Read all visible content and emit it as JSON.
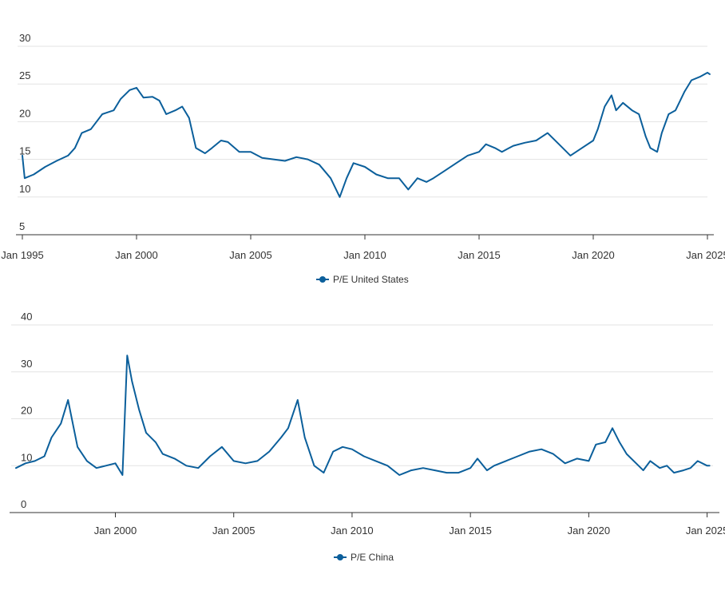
{
  "colors": {
    "series": "#0b5f9b",
    "grid": "#e3e3e3",
    "axis": "#333333",
    "text": "#333333"
  },
  "chart_data": [
    {
      "type": "line",
      "title": "",
      "xlabel": "",
      "ylabel": "",
      "ylim": [
        5,
        30
      ],
      "yticks": [
        "5",
        "10",
        "15",
        "20",
        "25",
        "30"
      ],
      "xticks": [
        "Jan 1995",
        "Jan 2000",
        "Jan 2005",
        "Jan 2010",
        "Jan 2015",
        "Jan 2020",
        "Jan 2025"
      ],
      "grid": true,
      "legend": "bottom-center",
      "series": [
        {
          "name": "P/E United States",
          "x": [
            1995.0,
            1995.1,
            1995.5,
            1996.0,
            1996.5,
            1997.0,
            1997.3,
            1997.6,
            1998.0,
            1998.5,
            1998.7,
            1999.0,
            1999.3,
            1999.7,
            2000.0,
            2000.3,
            2000.7,
            2001.0,
            2001.3,
            2001.7,
            2002.0,
            2002.3,
            2002.6,
            2003.0,
            2003.3,
            2003.7,
            2004.0,
            2004.5,
            2005.0,
            2005.5,
            2006.0,
            2006.5,
            2007.0,
            2007.5,
            2008.0,
            2008.5,
            2008.9,
            2009.2,
            2009.5,
            2010.0,
            2010.5,
            2011.0,
            2011.5,
            2011.9,
            2012.3,
            2012.7,
            2013.0,
            2013.5,
            2014.0,
            2014.5,
            2015.0,
            2015.3,
            2015.7,
            2016.0,
            2016.5,
            2017.0,
            2017.5,
            2018.0,
            2018.5,
            2019.0,
            2019.5,
            2020.0,
            2020.2,
            2020.5,
            2020.8,
            2021.0,
            2021.3,
            2021.7,
            2022.0,
            2022.3,
            2022.5,
            2022.8,
            2023.0,
            2023.3,
            2023.6,
            2024.0,
            2024.3,
            2024.7,
            2025.0,
            2025.1
          ],
          "values": [
            15.5,
            12.5,
            13.0,
            14.0,
            14.8,
            15.5,
            16.5,
            18.5,
            19.0,
            21.0,
            21.2,
            21.5,
            23.0,
            24.2,
            24.5,
            23.2,
            23.3,
            22.8,
            21.0,
            21.5,
            22.0,
            20.5,
            16.5,
            15.8,
            16.5,
            17.5,
            17.3,
            16.0,
            16.0,
            15.2,
            15.0,
            14.8,
            15.3,
            15.0,
            14.3,
            12.5,
            10.0,
            12.5,
            14.5,
            14.0,
            13.0,
            12.5,
            12.5,
            11.0,
            12.5,
            12.0,
            12.5,
            13.5,
            14.5,
            15.5,
            16.0,
            17.0,
            16.5,
            16.0,
            16.8,
            17.2,
            17.5,
            18.5,
            17.0,
            15.5,
            16.5,
            17.5,
            19.0,
            22.0,
            23.5,
            21.5,
            22.5,
            21.5,
            21.0,
            18.0,
            16.5,
            16.0,
            18.5,
            21.0,
            21.5,
            24.0,
            25.5,
            26.0,
            26.5,
            26.3
          ]
        }
      ]
    },
    {
      "type": "line",
      "title": "",
      "xlabel": "",
      "ylabel": "",
      "ylim": [
        0,
        40
      ],
      "yticks": [
        "0",
        "10",
        "20",
        "30",
        "40"
      ],
      "xticks": [
        "Jan 2000",
        "Jan 2005",
        "Jan 2010",
        "Jan 2015",
        "Jan 2020",
        "Jan 2025"
      ],
      "grid": true,
      "legend": "bottom-center",
      "series": [
        {
          "name": "P/E China",
          "x": [
            1995.8,
            1996.2,
            1996.6,
            1997.0,
            1997.3,
            1997.7,
            1998.0,
            1998.4,
            1998.8,
            1999.2,
            1999.6,
            2000.0,
            2000.3,
            2000.5,
            2000.7,
            2001.0,
            2001.3,
            2001.7,
            2002.0,
            2002.5,
            2003.0,
            2003.5,
            2004.0,
            2004.5,
            2005.0,
            2005.5,
            2006.0,
            2006.5,
            2007.0,
            2007.3,
            2007.7,
            2008.0,
            2008.4,
            2008.8,
            2009.2,
            2009.6,
            2010.0,
            2010.5,
            2011.0,
            2011.5,
            2012.0,
            2012.5,
            2013.0,
            2013.5,
            2014.0,
            2014.5,
            2015.0,
            2015.3,
            2015.7,
            2016.0,
            2016.5,
            2017.0,
            2017.5,
            2018.0,
            2018.5,
            2019.0,
            2019.5,
            2020.0,
            2020.3,
            2020.7,
            2021.0,
            2021.3,
            2021.6,
            2022.0,
            2022.3,
            2022.6,
            2023.0,
            2023.3,
            2023.6,
            2024.0,
            2024.3,
            2024.6,
            2025.0,
            2025.1
          ],
          "values": [
            9.5,
            10.5,
            11.0,
            12.0,
            16.0,
            19.0,
            24.0,
            14.0,
            11.0,
            9.5,
            10.0,
            10.5,
            8.0,
            33.5,
            28.0,
            22.0,
            17.0,
            15.0,
            12.5,
            11.5,
            10.0,
            9.5,
            12.0,
            14.0,
            11.0,
            10.5,
            11.0,
            13.0,
            16.0,
            18.0,
            24.0,
            16.0,
            10.0,
            8.5,
            13.0,
            14.0,
            13.5,
            12.0,
            11.0,
            10.0,
            8.0,
            9.0,
            9.5,
            9.0,
            8.5,
            8.5,
            9.5,
            11.5,
            9.0,
            10.0,
            11.0,
            12.0,
            13.0,
            13.5,
            12.5,
            10.5,
            11.5,
            11.0,
            14.5,
            15.0,
            18.0,
            15.0,
            12.5,
            10.5,
            9.0,
            11.0,
            9.5,
            10.0,
            8.5,
            9.0,
            9.5,
            11.0,
            10.0,
            10.0
          ]
        }
      ]
    }
  ]
}
